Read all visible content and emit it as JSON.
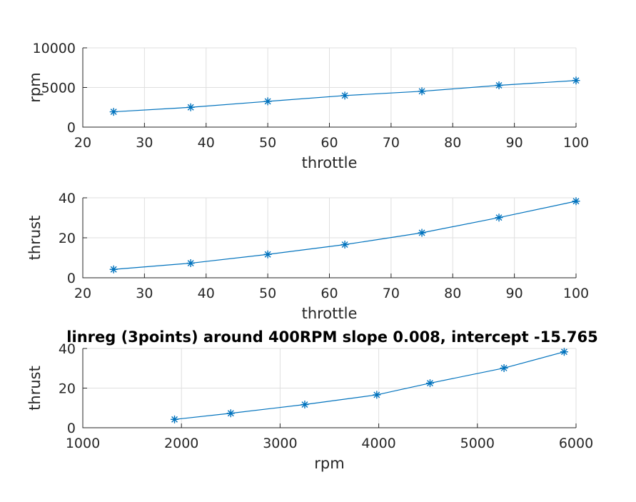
{
  "chart_data": [
    {
      "type": "line",
      "title": "",
      "xlabel": "throttle",
      "ylabel": "rpm",
      "xlim": [
        20,
        100
      ],
      "ylim": [
        0,
        10000
      ],
      "xticks": [
        "20",
        "30",
        "40",
        "50",
        "60",
        "70",
        "80",
        "90",
        "100"
      ],
      "yticks": [
        "0",
        "5000",
        "10000"
      ],
      "grid": true,
      "color": "#0072bd",
      "marker": "asterisk",
      "series": [
        {
          "x": [
            25,
            37.5,
            50,
            62.5,
            75,
            87.5,
            100
          ],
          "values": [
            1930,
            2500,
            3250,
            3980,
            4520,
            5270,
            5880
          ]
        }
      ]
    },
    {
      "type": "line",
      "title": "",
      "xlabel": "throttle",
      "ylabel": "thrust",
      "xlim": [
        20,
        100
      ],
      "ylim": [
        0,
        40
      ],
      "xticks": [
        "20",
        "30",
        "40",
        "50",
        "60",
        "70",
        "80",
        "90",
        "100"
      ],
      "yticks": [
        "0",
        "20",
        "40"
      ],
      "grid": true,
      "color": "#0072bd",
      "marker": "asterisk",
      "series": [
        {
          "x": [
            25,
            37.5,
            50,
            62.5,
            75,
            87.5,
            100
          ],
          "values": [
            4.2,
            7.3,
            11.7,
            16.6,
            22.5,
            30.1,
            38.3
          ]
        }
      ]
    },
    {
      "type": "line",
      "title": "linreg (3points) around 400RPM slope 0.008, intercept -15.765",
      "xlabel": "rpm",
      "ylabel": "thrust",
      "xlim": [
        1000,
        6000
      ],
      "ylim": [
        0,
        40
      ],
      "xticks": [
        "1000",
        "2000",
        "3000",
        "4000",
        "5000",
        "6000"
      ],
      "yticks": [
        "0",
        "20",
        "40"
      ],
      "grid": true,
      "color": "#0072bd",
      "marker": "asterisk",
      "series": [
        {
          "x": [
            1930,
            2500,
            3250,
            3980,
            4520,
            5270,
            5880
          ],
          "values": [
            4.2,
            7.3,
            11.7,
            16.6,
            22.5,
            30.1,
            38.3
          ]
        }
      ]
    }
  ]
}
